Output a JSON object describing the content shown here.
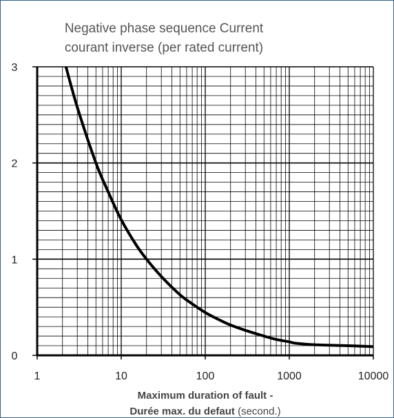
{
  "chart_data": {
    "type": "line",
    "title": "Negative phase sequence Current",
    "subtitle": "courant inverse (per rated current)",
    "xlabel_bold": "Maximum duration of fault -",
    "xlabel_line2_bold": "Durée max. du defaut",
    "xlabel_line2_normal": " (second.)",
    "xscale": "log",
    "xlim": [
      1,
      10000
    ],
    "ylim": [
      0,
      3
    ],
    "x_tick_labels": [
      "1",
      "10",
      "100",
      "1000",
      "10000"
    ],
    "y_tick_labels": [
      "0",
      "1",
      "2",
      "3"
    ],
    "grid": true,
    "legend": "none",
    "line_color": "#000000",
    "series": [
      {
        "x": [
          2.2,
          3,
          5,
          7,
          10,
          15,
          20,
          30,
          50,
          70,
          100,
          150,
          200,
          300,
          500,
          700,
          1000,
          1200,
          2000,
          5000,
          10000
        ],
        "y": [
          3.0,
          2.58,
          2.0,
          1.7,
          1.41,
          1.15,
          1.0,
          0.82,
          0.63,
          0.535,
          0.445,
          0.365,
          0.315,
          0.26,
          0.2,
          0.165,
          0.14,
          0.125,
          0.11,
          0.1,
          0.09
        ]
      }
    ]
  }
}
